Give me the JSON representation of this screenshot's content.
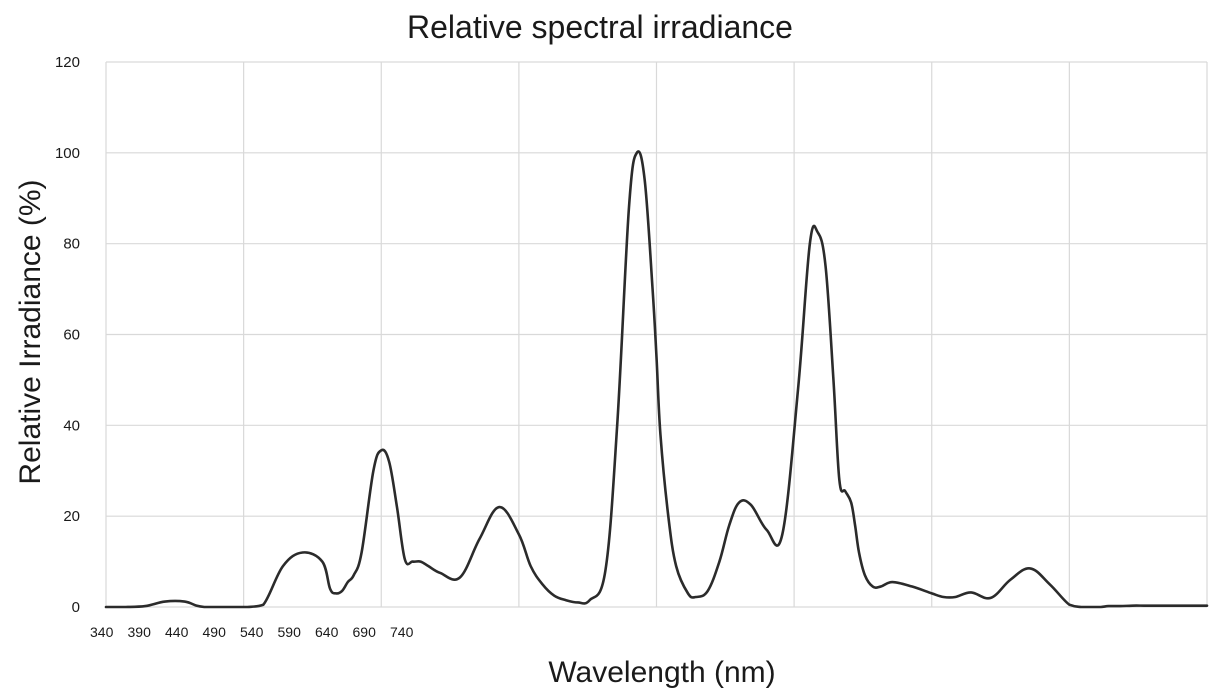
{
  "chart_data": {
    "type": "line",
    "title": "Relative spectral irradiance",
    "xlabel": "Wavelength (nm)",
    "ylabel": "Relative Irradiance (%)",
    "ylim": [
      0,
      120
    ],
    "yticks": [
      0,
      20,
      40,
      60,
      80,
      100,
      120
    ],
    "xtick_labels": [
      "340",
      "390",
      "440",
      "490",
      "540",
      "590",
      "640",
      "690",
      "740"
    ],
    "grid": true,
    "colors": {
      "line": "#2b2b2b",
      "grid": "#d9d9d9"
    },
    "x_index": [
      0,
      0.5,
      1,
      1.5,
      2,
      2.3,
      2.5,
      2.7,
      3,
      3.3,
      3.6,
      4,
      4.5,
      5,
      5.5,
      5.7,
      5.85,
      6,
      6.15,
      6.3,
      6.5,
      6.8,
      7,
      7.2,
      7.4,
      7.6,
      7.8,
      8,
      8.2,
      8.5,
      9,
      9.5,
      10,
      10.5,
      10.8,
      11.1,
      11.4,
      11.7,
      12,
      12.3,
      12.7,
      13,
      13.3,
      13.5,
      13.7,
      13.9,
      14,
      14.1,
      14.3,
      14.5,
      14.8,
      15,
      15.3,
      15.6,
      15.85,
      16.1,
      16.4,
      16.8,
      17.2,
      17.6,
      17.9,
      18.1,
      18.3,
      18.5,
      18.65,
      18.8,
      18.95,
      19.05,
      19.15,
      19.3,
      19.5,
      19.7,
      20,
      20.5,
      21,
      21.3,
      21.6,
      22,
      22.5,
      23,
      23.5,
      24,
      24.5,
      24.8,
      25.05,
      25.3,
      25.5,
      25.8,
      26.1,
      26.4,
      26.7,
      27,
      27.5,
      28
    ],
    "values": [
      0,
      0,
      0.2,
      1.2,
      1.2,
      0.3,
      0,
      0,
      0,
      0,
      0,
      0.5,
      9,
      12,
      10,
      4,
      3,
      3.5,
      5.5,
      7,
      12,
      30,
      34.5,
      32,
      22,
      10.5,
      10,
      10,
      9,
      7.5,
      6.5,
      15,
      22,
      16,
      9,
      5,
      2.5,
      1.5,
      1,
      1.5,
      8,
      40,
      88,
      100,
      94,
      70,
      55,
      38,
      20,
      9,
      3,
      2.2,
      3.5,
      10,
      18,
      23,
      22.5,
      17,
      16,
      48,
      80,
      82.5,
      75,
      50,
      28,
      25.5,
      23,
      18,
      12,
      7,
      4.5,
      4.5,
      5.5,
      4.5,
      3,
      2.2,
      2.2,
      3.2,
      2,
      6,
      8.5,
      5,
      0.5,
      0,
      0,
      0,
      0.2,
      0.2,
      0.3,
      0.3,
      0.3,
      0.3,
      0.3,
      0.3
    ]
  }
}
